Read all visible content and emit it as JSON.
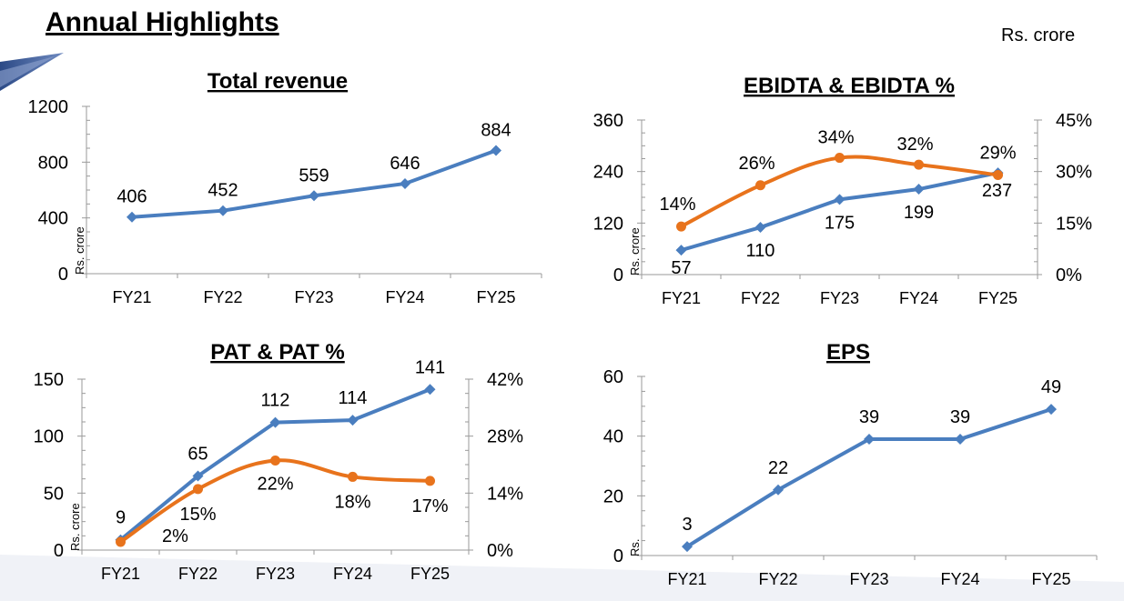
{
  "page": {
    "title": "Annual Highlights",
    "unit": "Rs. crore"
  },
  "colors": {
    "blue": "#4a7ebf",
    "orange": "#e8731c",
    "axis": "#9a9a9a",
    "text": "#000000"
  },
  "chart_data": [
    {
      "id": "total-revenue",
      "type": "line",
      "title": "Total revenue",
      "ylabel": "Rs. crore",
      "categories": [
        "FY21",
        "FY22",
        "FY23",
        "FY24",
        "FY25"
      ],
      "ylim": [
        0,
        1200
      ],
      "yticks": [
        "0",
        "400",
        "800",
        "1200"
      ],
      "series": [
        {
          "axis": "left",
          "color": "#4a7ebf",
          "marker": "diamond",
          "smooth": false,
          "values": [
            406,
            452,
            559,
            646,
            884
          ],
          "labels": [
            "406",
            "452",
            "559",
            "646",
            "884"
          ]
        }
      ]
    },
    {
      "id": "ebidta",
      "type": "line",
      "title": "EBIDTA & EBIDTA %",
      "ylabel": "Rs. crore",
      "categories": [
        "FY21",
        "FY22",
        "FY23",
        "FY24",
        "FY25"
      ],
      "ylim": [
        0,
        360
      ],
      "yticks": [
        "0",
        "120",
        "240",
        "360"
      ],
      "y2lim": [
        0,
        45
      ],
      "y2ticks": [
        "0%",
        "15%",
        "30%",
        "45%"
      ],
      "series": [
        {
          "axis": "left",
          "color": "#4a7ebf",
          "marker": "diamond",
          "smooth": false,
          "values": [
            57,
            110,
            175,
            199,
            237
          ],
          "labels": [
            "57",
            "110",
            "175",
            "199",
            "237"
          ]
        },
        {
          "axis": "right",
          "color": "#e8731c",
          "marker": "circle",
          "smooth": true,
          "values": [
            14,
            26,
            34,
            32,
            29
          ],
          "labels": [
            "14%",
            "26%",
            "34%",
            "32%",
            "29%"
          ]
        }
      ]
    },
    {
      "id": "pat",
      "type": "line",
      "title": "PAT & PAT %",
      "ylabel": "Rs. crore",
      "categories": [
        "FY21",
        "FY22",
        "FY23",
        "FY24",
        "FY25"
      ],
      "ylim": [
        0,
        150
      ],
      "yticks": [
        "0",
        "50",
        "100",
        "150"
      ],
      "y2lim": [
        0,
        42
      ],
      "y2ticks": [
        "0%",
        "14%",
        "28%",
        "42%"
      ],
      "series": [
        {
          "axis": "left",
          "color": "#4a7ebf",
          "marker": "diamond",
          "smooth": false,
          "values": [
            9,
            65,
            112,
            114,
            141
          ],
          "labels": [
            "9",
            "65",
            "112",
            "114",
            "141"
          ]
        },
        {
          "axis": "right",
          "color": "#e8731c",
          "marker": "circle",
          "smooth": true,
          "values": [
            2,
            15,
            22,
            18,
            17
          ],
          "labels": [
            "2%",
            "15%",
            "22%",
            "18%",
            "17%"
          ]
        }
      ]
    },
    {
      "id": "eps",
      "type": "line",
      "title": "EPS",
      "ylabel": "Rs.",
      "categories": [
        "FY21",
        "FY22",
        "FY23",
        "FY24",
        "FY25"
      ],
      "ylim": [
        0,
        60
      ],
      "yticks": [
        "0",
        "20",
        "40",
        "60"
      ],
      "series": [
        {
          "axis": "left",
          "color": "#4a7ebf",
          "marker": "diamond",
          "smooth": false,
          "values": [
            3,
            22,
            39,
            39,
            49
          ],
          "labels": [
            "3",
            "22",
            "39",
            "39",
            "49"
          ]
        }
      ]
    }
  ]
}
